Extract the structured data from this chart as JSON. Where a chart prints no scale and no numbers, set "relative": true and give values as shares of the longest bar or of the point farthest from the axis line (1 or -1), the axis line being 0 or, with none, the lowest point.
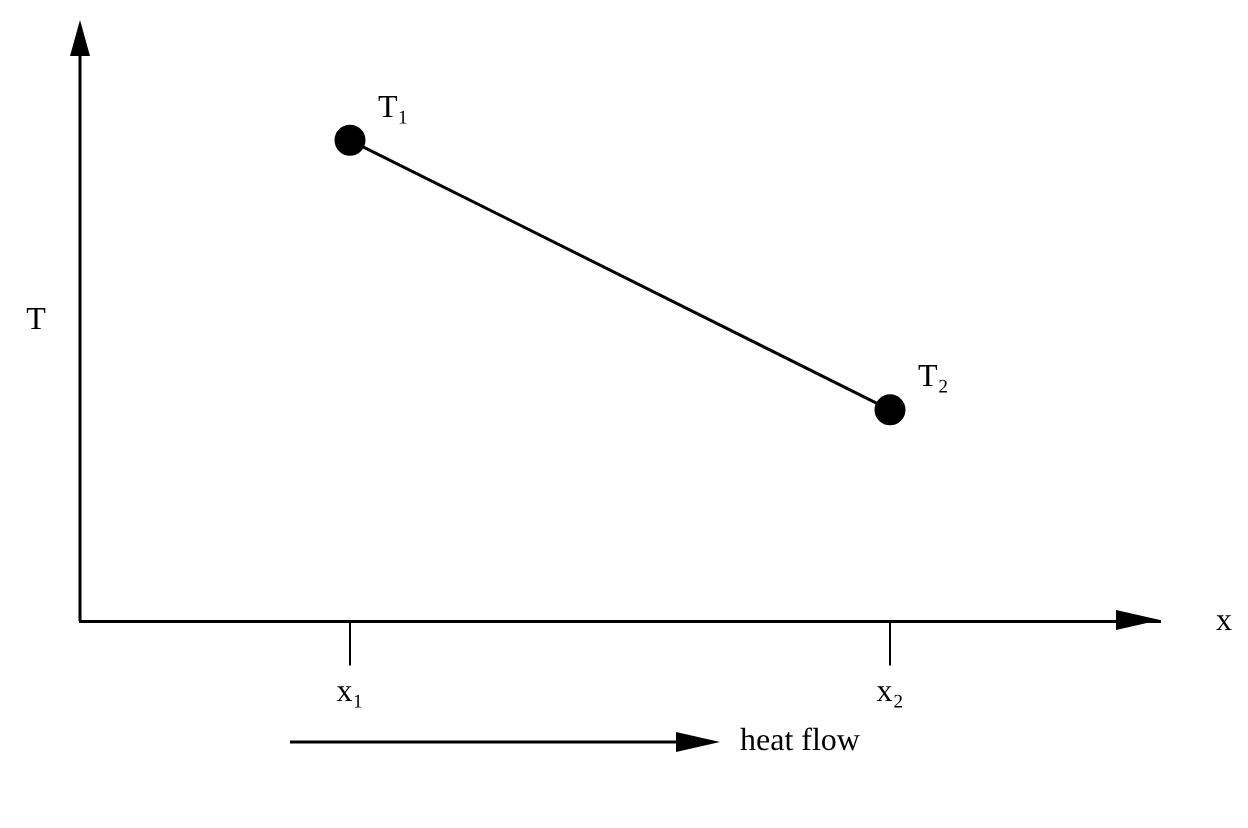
{
  "chart_data": {
    "type": "line",
    "relative": true,
    "xlabel": "x",
    "ylabel": "T",
    "categories": [
      "x₁",
      "x₂"
    ],
    "series": [
      {
        "color": "#000000",
        "values": [
          1,
          0.44
        ]
      }
    ],
    "marker": "circle",
    "line_style": "solid",
    "annotations": [
      {
        "text": "T₁",
        "x": "x₁",
        "y": 1
      },
      {
        "text": "T₂",
        "x": "x₂",
        "y": 0.44
      },
      "heat flow"
    ]
  }
}
